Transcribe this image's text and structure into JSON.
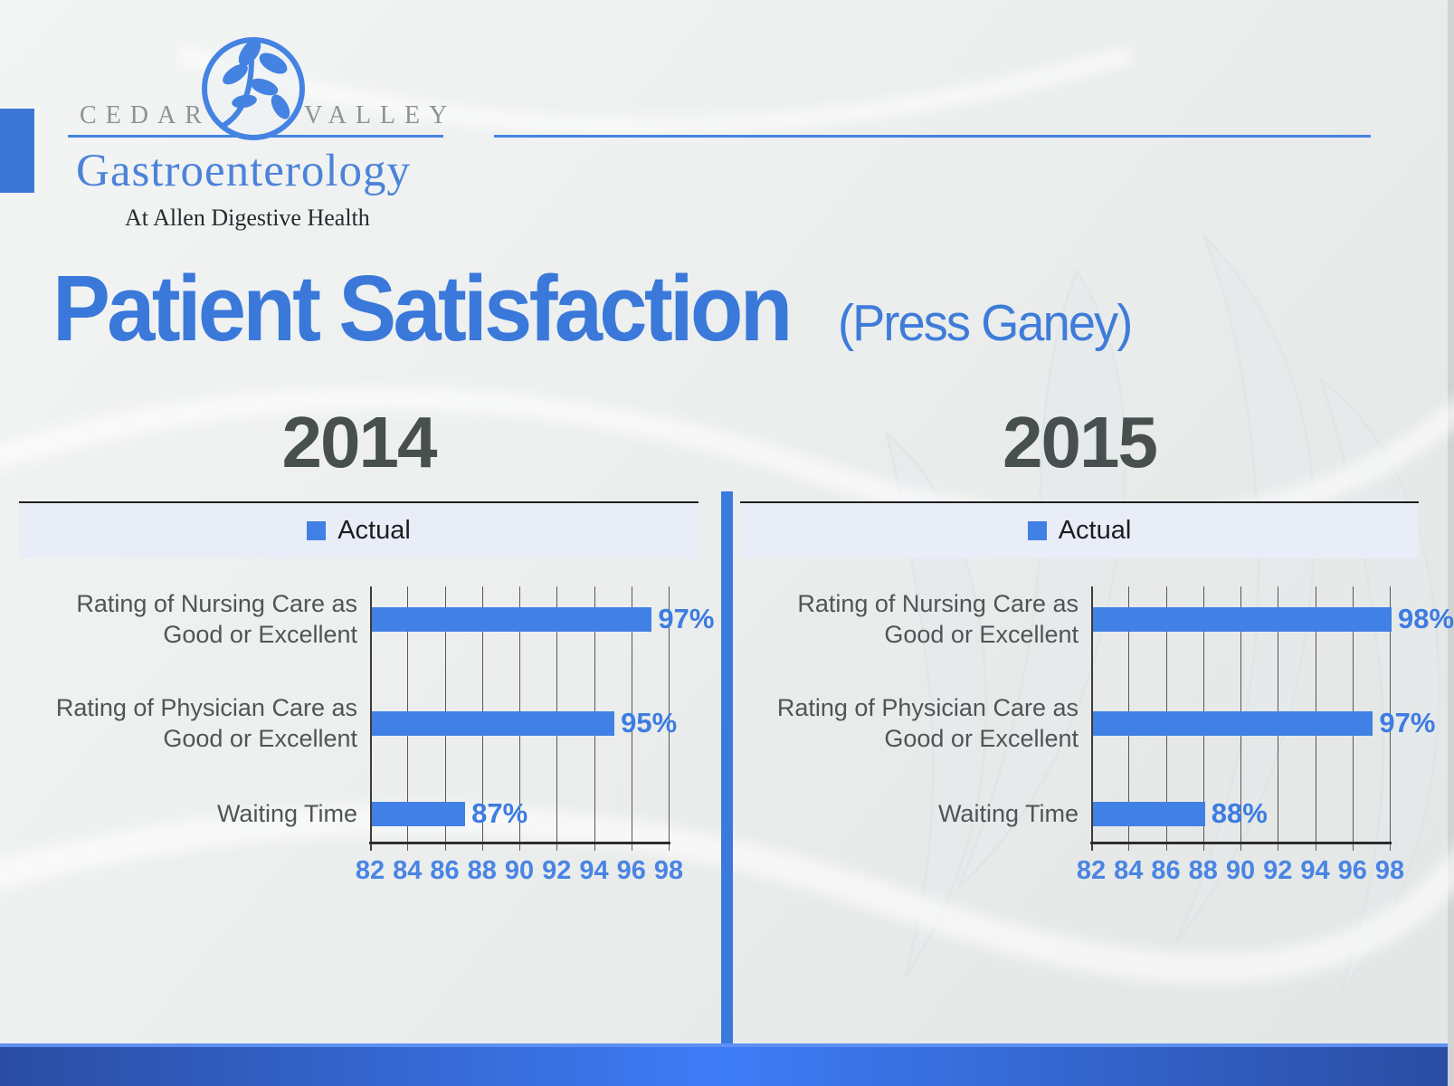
{
  "brand": {
    "word_left": "CEDAR",
    "word_right": "VALLEY",
    "name": "Gastroenterology",
    "tagline": "At Allen Digestive Health"
  },
  "title": {
    "main": "Patient Satisfaction",
    "suffix": "(Press Ganey)"
  },
  "colors": {
    "bar_blue": "#4180e4",
    "title_blue": "#3a78da",
    "year_heading_gray": "#47504f",
    "legend_background": "#e9edf8",
    "divider_blue": "#3b79dc",
    "bottom_bar_center": "#3e7cf7",
    "bottom_bar_edge": "#2a4da3",
    "logo_blue": "#4c83d9",
    "logo_gray": "#8e9296"
  },
  "chart_data": [
    {
      "type": "bar",
      "orientation": "horizontal",
      "title": "2014",
      "legend": [
        {
          "label": "Actual",
          "color": "#4180e4"
        }
      ],
      "categories": [
        [
          "Rating of Nursing Care as",
          "Good or Excellent"
        ],
        [
          "Rating of Physician Care as",
          "Good or Excellent"
        ],
        [
          "Waiting Time"
        ]
      ],
      "series": [
        {
          "name": "Actual",
          "values": [
            97,
            95,
            87
          ]
        }
      ],
      "value_labels": [
        "97%",
        "95%",
        "87%"
      ],
      "xlim": [
        82,
        98
      ],
      "xticks": [
        82,
        84,
        86,
        88,
        90,
        92,
        94,
        96,
        98
      ],
      "grid": "vertical"
    },
    {
      "type": "bar",
      "orientation": "horizontal",
      "title": "2015",
      "legend": [
        {
          "label": "Actual",
          "color": "#4180e4"
        }
      ],
      "categories": [
        [
          "Rating of Nursing Care as",
          "Good or Excellent"
        ],
        [
          "Rating of Physician Care as",
          "Good or Excellent"
        ],
        [
          "Waiting Time"
        ]
      ],
      "series": [
        {
          "name": "Actual",
          "values": [
            98,
            97,
            88
          ]
        }
      ],
      "value_labels": [
        "98%",
        "97%",
        "88%"
      ],
      "xlim": [
        82,
        98
      ],
      "xticks": [
        82,
        84,
        86,
        88,
        90,
        92,
        94,
        96,
        98
      ],
      "grid": "vertical"
    }
  ]
}
